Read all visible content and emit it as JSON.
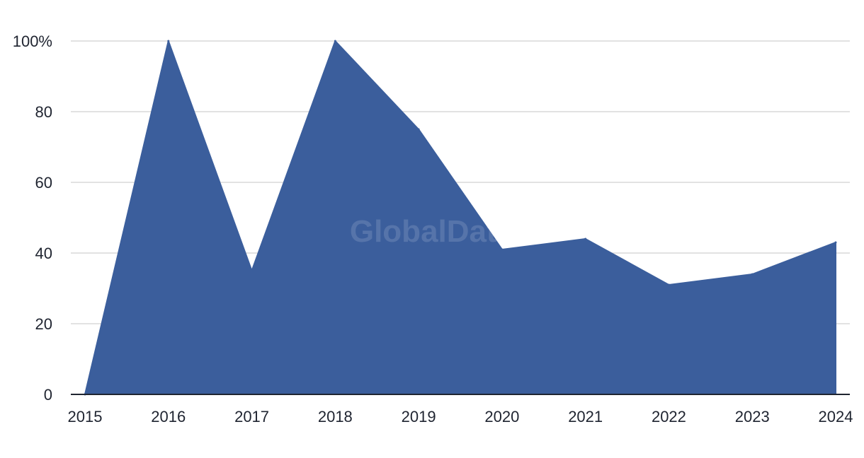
{
  "chart_data": {
    "type": "area",
    "x": [
      "2015",
      "2016",
      "2017",
      "2018",
      "2019",
      "2020",
      "2021",
      "2022",
      "2023",
      "2024"
    ],
    "series": [
      {
        "values": [
          0,
          100,
          35,
          100,
          75,
          41,
          44,
          31,
          34,
          43
        ]
      }
    ],
    "y_ticks": [
      {
        "value": 0,
        "label": "0"
      },
      {
        "value": 20,
        "label": "20"
      },
      {
        "value": 40,
        "label": "40"
      },
      {
        "value": 60,
        "label": "60"
      },
      {
        "value": 80,
        "label": "80"
      },
      {
        "value": 100,
        "label": "100%"
      }
    ],
    "ylim": [
      0,
      100
    ],
    "grid": true,
    "colors": {
      "area": "#3b5e9c",
      "grid": "#d9d9d9",
      "axis": "#1f2430",
      "text": "#1f2430"
    },
    "watermark": "GlobalData"
  }
}
